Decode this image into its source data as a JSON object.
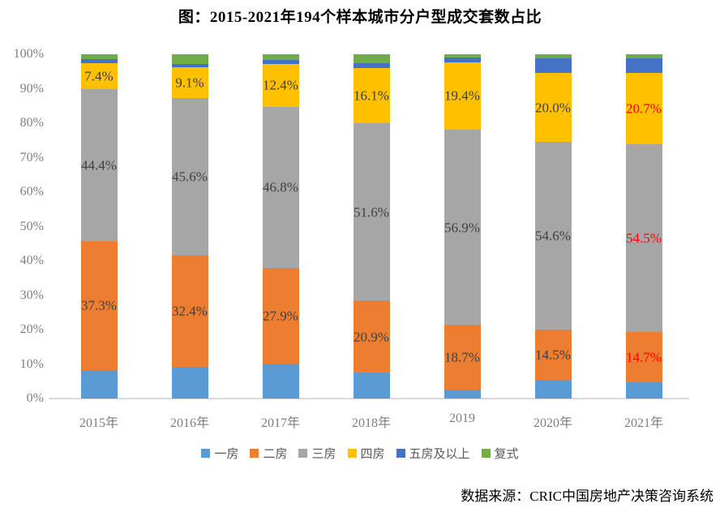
{
  "title": "图：2015-2021年194个样本城市分户型成交套数占比",
  "source": "数据来源：CRIC中国房地产决策咨询系统",
  "chart_data": {
    "type": "bar",
    "subtype": "stacked-percentage-column",
    "title": "图：2015-2021年194个样本城市分户型成交套数占比",
    "categories": [
      "2015年",
      "2016年",
      "2017年",
      "2018年",
      "2019",
      "2020年",
      "2021年"
    ],
    "series": [
      {
        "name": "一房",
        "color": "#5B9BD5",
        "labeled": false,
        "values": [
          8.3,
          9.2,
          10.1,
          7.5,
          2.6,
          5.4,
          4.6
        ]
      },
      {
        "name": "二房",
        "color": "#ED7D31",
        "labeled": true,
        "values": [
          37.3,
          32.4,
          27.9,
          20.9,
          18.7,
          14.5,
          14.7
        ]
      },
      {
        "name": "三房",
        "color": "#A6A6A6",
        "labeled": true,
        "values": [
          44.4,
          45.6,
          46.8,
          51.6,
          56.9,
          54.6,
          54.5
        ]
      },
      {
        "name": "四房",
        "color": "#FFC000",
        "labeled": true,
        "values": [
          7.4,
          9.1,
          12.4,
          16.1,
          19.4,
          20.0,
          20.7
        ]
      },
      {
        "name": "五房及以上",
        "color": "#4472C4",
        "labeled": false,
        "values": [
          1.1,
          1.0,
          1.2,
          1.4,
          1.4,
          4.3,
          4.3
        ]
      },
      {
        "name": "复式",
        "color": "#70AD47",
        "labeled": false,
        "values": [
          1.5,
          2.7,
          1.6,
          2.5,
          1.0,
          1.2,
          1.2
        ]
      }
    ],
    "ylim": [
      0,
      100
    ],
    "yticks": [
      "0%",
      "10%",
      "20%",
      "30%",
      "40%",
      "50%",
      "60%",
      "70%",
      "80%",
      "90%",
      "100%"
    ],
    "grid": false,
    "legend_position": "bottom",
    "label_color_default": "#404040",
    "label_color_highlight": "#FF0000",
    "highlight_category": "2021年",
    "label_suffix": "%"
  }
}
